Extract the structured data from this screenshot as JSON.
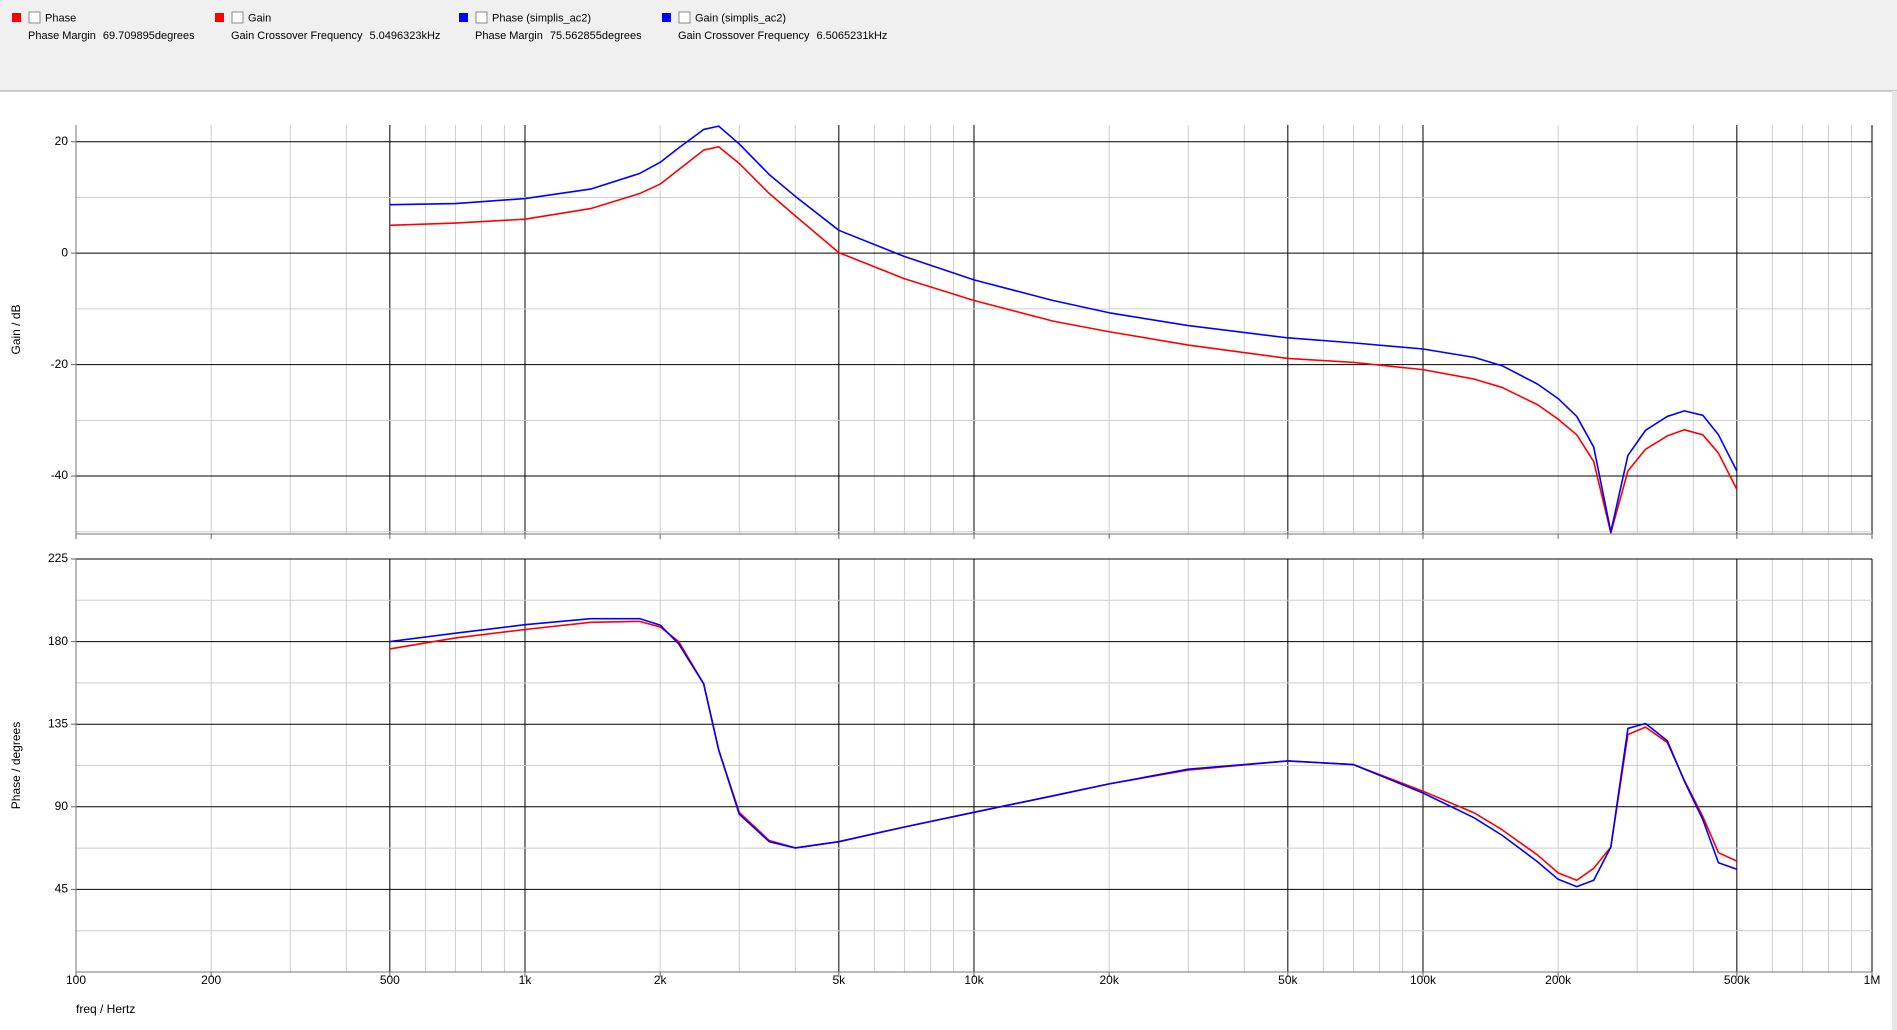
{
  "chart_data": [
    {
      "type": "line",
      "ylabel": "Gain / dB",
      "log_x": true,
      "grid": true,
      "minor_grid": true,
      "xlim": [
        100,
        1000000
      ],
      "ylim": [
        -50.4,
        23
      ],
      "yticks": [
        -40,
        -20,
        0,
        20
      ],
      "x": [
        500,
        700,
        1000,
        1400,
        1800,
        2000,
        2200,
        2500,
        2700,
        3000,
        3500,
        4000,
        5000,
        7000,
        10000,
        15000,
        20000,
        30000,
        50000,
        70000,
        100000,
        130000,
        150000,
        180000,
        200000,
        220000,
        240000,
        262000,
        286000,
        313000,
        350000,
        382000,
        420000,
        455000,
        500000
      ],
      "series": [
        {
          "name": "Gain",
          "color": "#ff0000",
          "measurement": {
            "label": "Gain Crossover Frequency",
            "value": "5.0496323kHz"
          },
          "values": [
            5.0,
            5.4,
            6.1,
            8.0,
            10.7,
            12.4,
            15.0,
            18.5,
            19.1,
            16.1,
            10.7,
            6.7,
            0.1,
            -4.6,
            -8.5,
            -12.2,
            -14.1,
            -16.5,
            -18.9,
            -19.6,
            -20.9,
            -22.6,
            -24.1,
            -27.2,
            -29.8,
            -32.6,
            -37.4,
            -50.2,
            -39.1,
            -35.2,
            -32.8,
            -31.7,
            -32.6,
            -35.9,
            -42.4
          ]
        },
        {
          "name": "Gain (simplis_ac2)",
          "color": "#0000ff",
          "measurement": {
            "label": "Gain Crossover Frequency",
            "value": "6.5065231kHz"
          },
          "values": [
            8.7,
            8.9,
            9.8,
            11.5,
            14.3,
            16.3,
            18.9,
            22.2,
            22.8,
            19.6,
            14.1,
            10.2,
            4.1,
            -0.6,
            -4.8,
            -8.5,
            -10.7,
            -13.0,
            -15.2,
            -16.1,
            -17.2,
            -18.7,
            -20.2,
            -23.5,
            -26.1,
            -29.3,
            -34.8,
            -50.0,
            -36.3,
            -31.8,
            -29.3,
            -28.3,
            -29.1,
            -32.6,
            -39.1
          ]
        }
      ]
    },
    {
      "type": "line",
      "ylabel": "Phase / degrees",
      "xlabel": "freq / Hertz",
      "log_x": true,
      "grid": true,
      "minor_grid": true,
      "xlim": [
        100,
        1000000
      ],
      "ylim": [
        0,
        225
      ],
      "yticks": [
        45,
        90,
        135,
        180,
        225
      ],
      "xticks": [
        {
          "value": 100,
          "label": "100"
        },
        {
          "value": 200,
          "label": "200"
        },
        {
          "value": 500,
          "label": "500"
        },
        {
          "value": 1000,
          "label": "1k"
        },
        {
          "value": 2000,
          "label": "2k"
        },
        {
          "value": 5000,
          "label": "5k"
        },
        {
          "value": 10000,
          "label": "10k"
        },
        {
          "value": 20000,
          "label": "20k"
        },
        {
          "value": 50000,
          "label": "50k"
        },
        {
          "value": 100000,
          "label": "100k"
        },
        {
          "value": 200000,
          "label": "200k"
        },
        {
          "value": 500000,
          "label": "500k"
        },
        {
          "value": 1000000,
          "label": "1M"
        }
      ],
      "x": [
        500,
        700,
        1000,
        1400,
        1800,
        2000,
        2200,
        2500,
        2700,
        3000,
        3500,
        4000,
        5000,
        7000,
        10000,
        15000,
        20000,
        30000,
        50000,
        70000,
        100000,
        130000,
        150000,
        180000,
        200000,
        220000,
        240000,
        262000,
        286000,
        313000,
        350000,
        382000,
        420000,
        455000,
        500000
      ],
      "series": [
        {
          "name": "Phase",
          "color": "#ff0000",
          "measurement": {
            "label": "Phase Margin",
            "value": "69.709895degrees"
          },
          "values": [
            176,
            182,
            186.6,
            190.5,
            191,
            188,
            180,
            157,
            121,
            87,
            71.6,
            67.6,
            71,
            79,
            87,
            96,
            102.5,
            110,
            115,
            113,
            98.5,
            86.7,
            77.5,
            63.7,
            54,
            50,
            56.5,
            68,
            129.4,
            133.4,
            125,
            104.4,
            84.7,
            65,
            60.4
          ]
        },
        {
          "name": "Phase (simplis_ac2)",
          "color": "#0000ff",
          "measurement": {
            "label": "Phase Margin",
            "value": "75.562855degrees"
          },
          "values": [
            180,
            184.6,
            189.2,
            192.5,
            192.5,
            189,
            178.7,
            157,
            121,
            86,
            71,
            67.6,
            71,
            79,
            87,
            96,
            102.5,
            110.5,
            115,
            113,
            97.5,
            84,
            74.5,
            60,
            50.5,
            46.5,
            50,
            68,
            132.7,
            135.4,
            126,
            104,
            83,
            59.5,
            56
          ]
        }
      ]
    }
  ]
}
